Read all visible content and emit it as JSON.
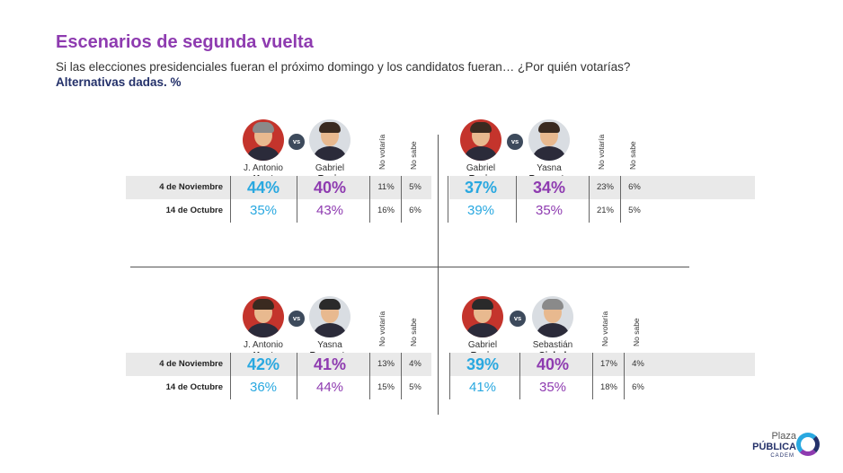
{
  "header": {
    "title": "Escenarios de segunda vuelta",
    "subtitle": "Si las elecciones presidenciales fueran el próximo domingo y los candidatos fueran… ¿Por quién votarías?",
    "subtitle2": "Alternativas dadas. %"
  },
  "labels": {
    "vs": "vs",
    "no_votaria": "No votaría",
    "no_sabe": "No sabe",
    "row1": "4 de Noviembre",
    "row2": "14 de Octubre"
  },
  "colors": {
    "candidate1": "#29a8e0",
    "candidate2": "#8e3bb0",
    "title": "#8e3bb0"
  },
  "chart_data": [
    {
      "type": "table",
      "candidates": [
        {
          "first": "J. Antonio",
          "last": "Kast"
        },
        {
          "first": "Gabriel",
          "last": "Boric"
        }
      ],
      "rows": [
        {
          "date": "4 de Noviembre",
          "c1": "44%",
          "c2": "40%",
          "no_votaria": "11%",
          "no_sabe": "5%"
        },
        {
          "date": "14 de Octubre",
          "c1": "35%",
          "c2": "43%",
          "no_votaria": "16%",
          "no_sabe": "6%"
        }
      ]
    },
    {
      "type": "table",
      "candidates": [
        {
          "first": "Gabriel",
          "last": "Boric"
        },
        {
          "first": "Yasna",
          "last": "Provoste"
        }
      ],
      "rows": [
        {
          "date": "4 de Noviembre",
          "c1": "37%",
          "c2": "34%",
          "no_votaria": "23%",
          "no_sabe": "6%"
        },
        {
          "date": "14 de Octubre",
          "c1": "39%",
          "c2": "35%",
          "no_votaria": "21%",
          "no_sabe": "5%"
        }
      ]
    },
    {
      "type": "table",
      "candidates": [
        {
          "first": "J. Antonio",
          "last": "Kast"
        },
        {
          "first": "Yasna",
          "last": "Provoste"
        }
      ],
      "rows": [
        {
          "date": "4 de Noviembre",
          "c1": "42%",
          "c2": "41%",
          "no_votaria": "13%",
          "no_sabe": "4%"
        },
        {
          "date": "14 de Octubre",
          "c1": "36%",
          "c2": "44%",
          "no_votaria": "15%",
          "no_sabe": "5%"
        }
      ]
    },
    {
      "type": "table",
      "candidates": [
        {
          "first": "Gabriel",
          "last": "Boric"
        },
        {
          "first": "Sebastián",
          "last": "Sichel"
        }
      ],
      "rows": [
        {
          "date": "4 de Noviembre",
          "c1": "39%",
          "c2": "40%",
          "no_votaria": "17%",
          "no_sabe": "4%"
        },
        {
          "date": "14 de Octubre",
          "c1": "41%",
          "c2": "35%",
          "no_votaria": "18%",
          "no_sabe": "6%"
        }
      ]
    }
  ],
  "logo": {
    "line1": "Plaza",
    "line2": "PÚBLICA",
    "line3": "CADEM"
  }
}
